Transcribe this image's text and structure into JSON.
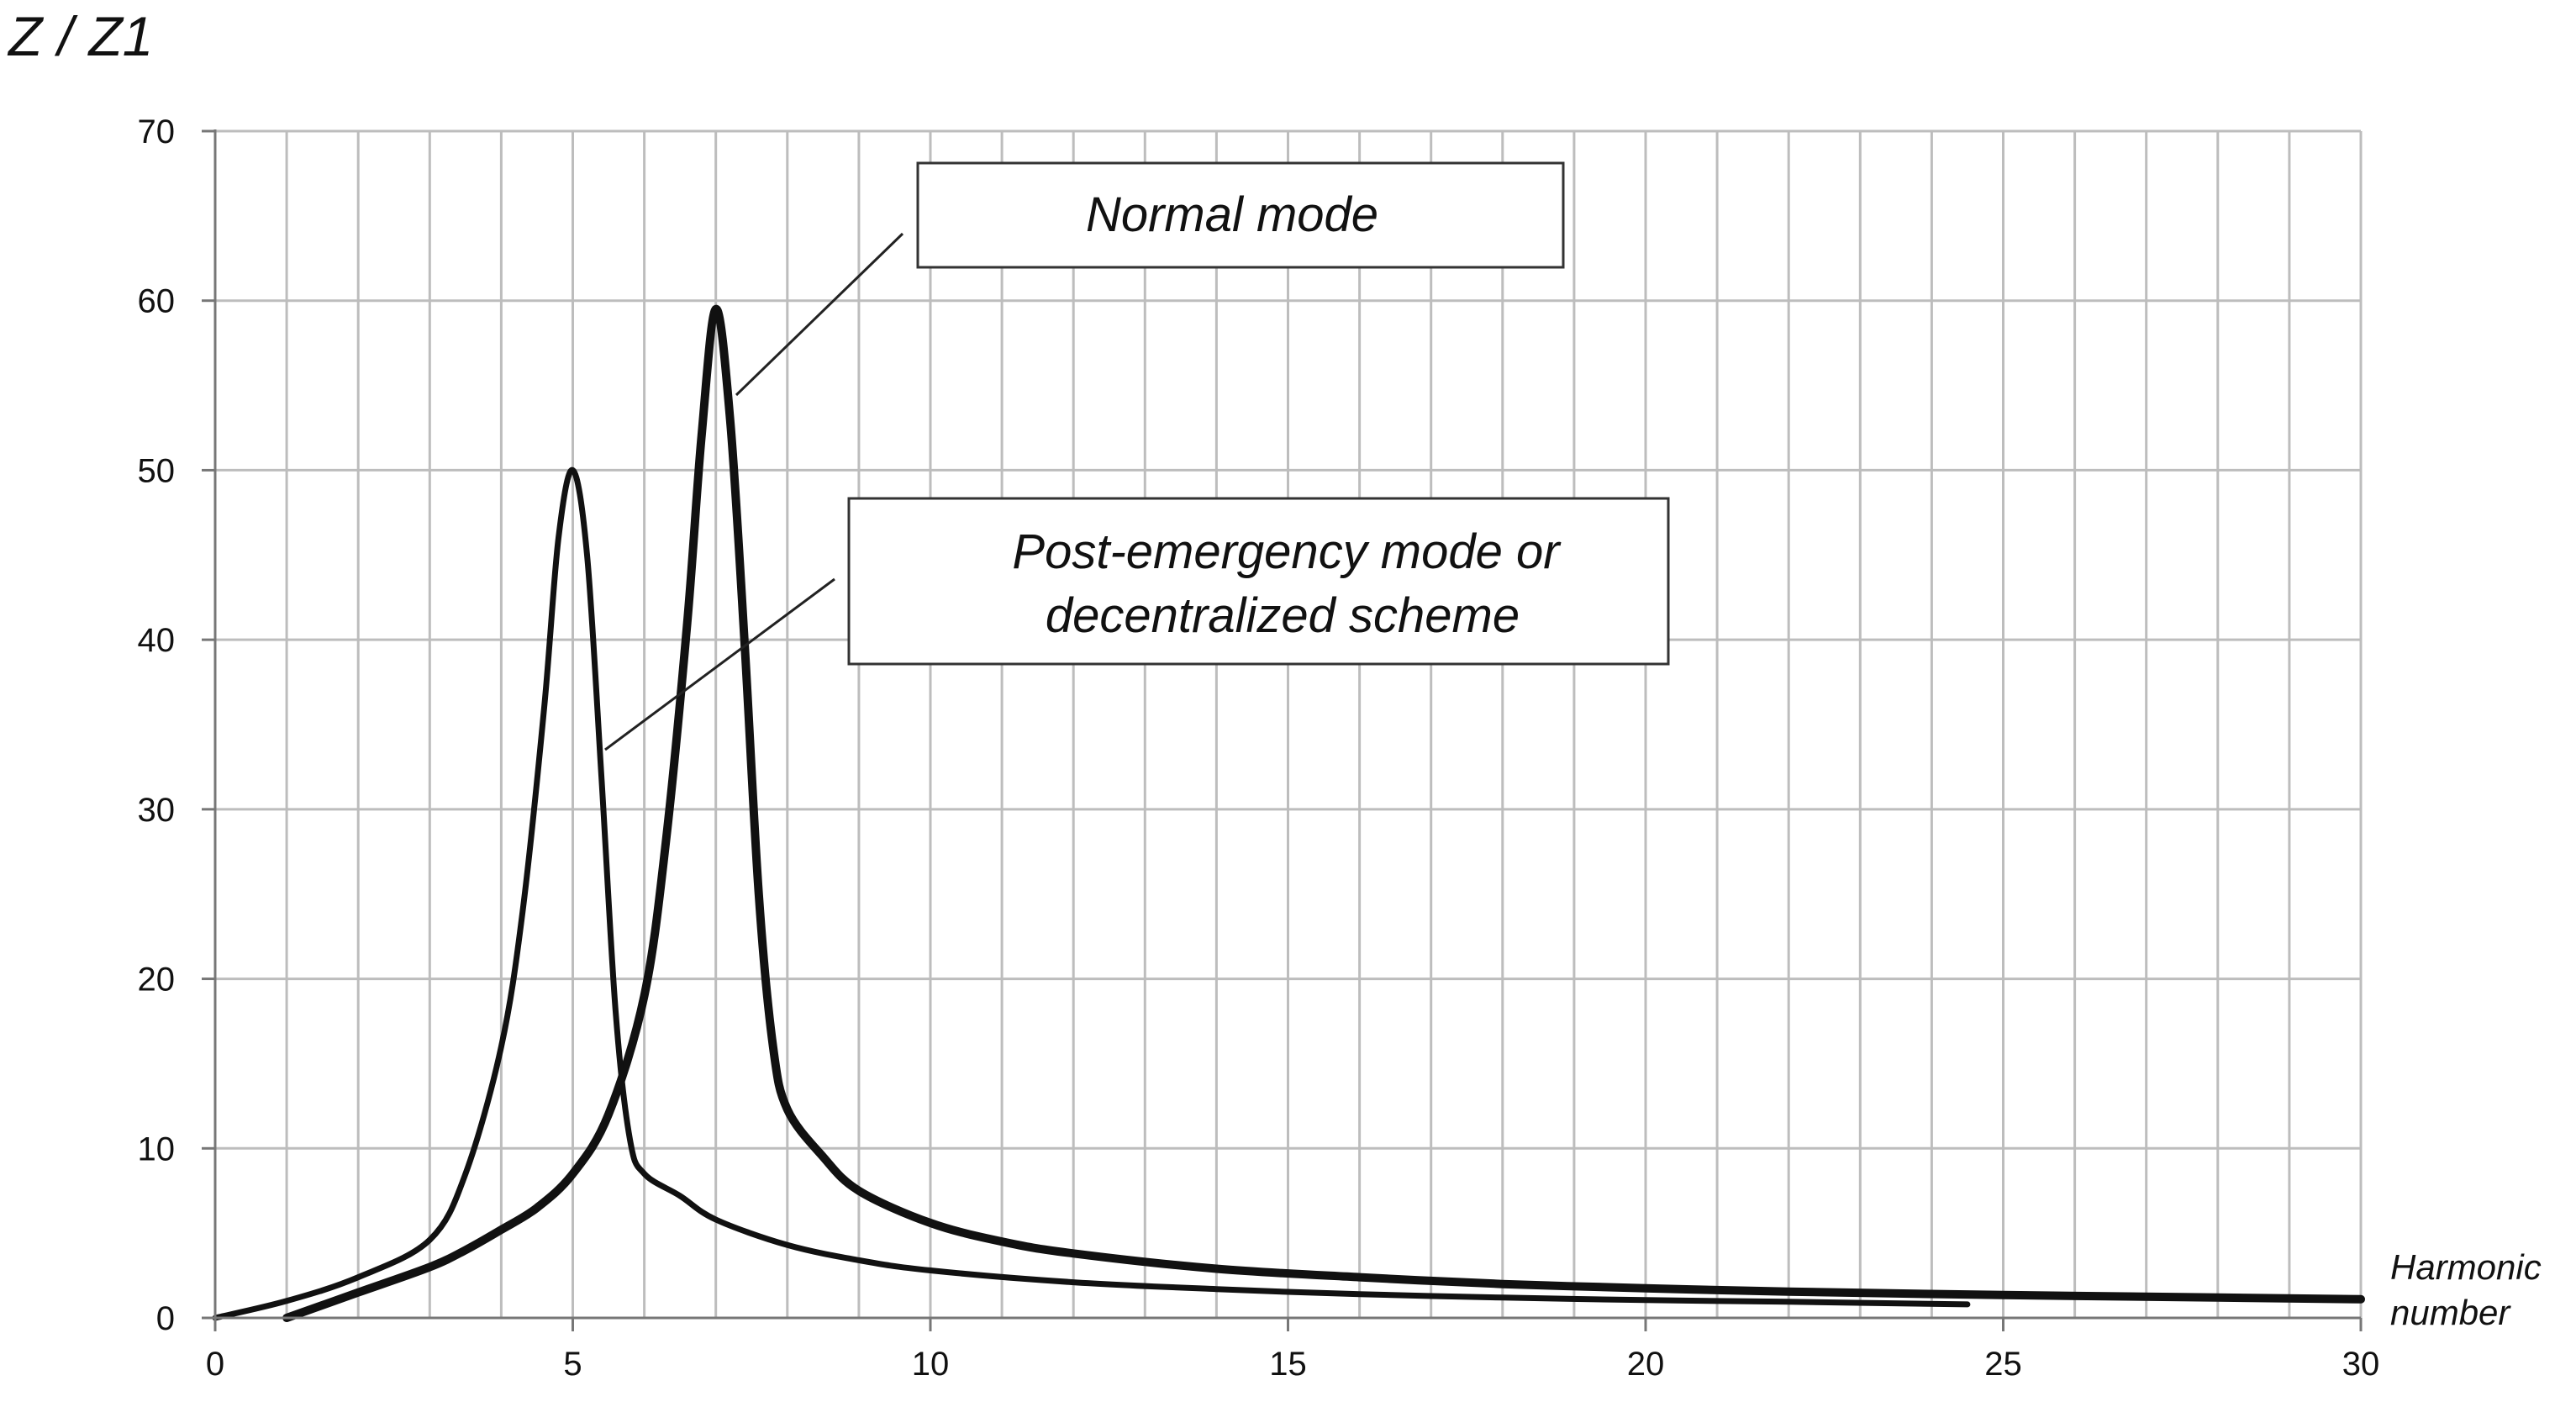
{
  "chart_data": {
    "type": "line",
    "ylabel": "Z / Z1",
    "xlabel": [
      "Harmonic",
      "number"
    ],
    "xlim": [
      0,
      30
    ],
    "ylim": [
      0,
      70
    ],
    "xticks": [
      0,
      5,
      10,
      15,
      20,
      25,
      30
    ],
    "yticks": [
      0,
      10,
      20,
      30,
      40,
      50,
      60,
      70
    ],
    "x_minor_step": 1,
    "grid": true,
    "series": [
      {
        "label": [
          "Normal mode"
        ],
        "x": [
          1,
          2,
          3,
          3.5,
          4,
          4.5,
          5,
          5.5,
          6,
          6.3,
          6.6,
          6.8,
          7,
          7.2,
          7.4,
          7.6,
          7.8,
          8,
          8.5,
          9,
          10,
          11,
          12,
          14,
          16,
          18,
          20,
          22,
          25,
          28,
          30
        ],
        "y": [
          0,
          1.5,
          3.0,
          4.0,
          5.2,
          6.5,
          8.5,
          12,
          19,
          28,
          41,
          52,
          59.5,
          53,
          40,
          25,
          16,
          12.3,
          9.5,
          7.5,
          5.6,
          4.5,
          3.8,
          2.9,
          2.4,
          2.0,
          1.75,
          1.55,
          1.35,
          1.2,
          1.1
        ]
      },
      {
        "label": [
          "Post-emergency mode or",
          "decentralized scheme"
        ],
        "x": [
          0,
          1,
          2,
          3,
          3.5,
          4,
          4.3,
          4.6,
          4.8,
          5,
          5.2,
          5.4,
          5.6,
          5.8,
          6,
          6.5,
          7,
          8,
          9,
          10,
          12,
          14,
          16,
          18,
          20,
          22,
          24.5
        ],
        "y": [
          0,
          1.0,
          2.4,
          4.6,
          8.5,
          16,
          24,
          36,
          46,
          50,
          45,
          32,
          18,
          10.5,
          8.5,
          7.2,
          5.8,
          4.3,
          3.4,
          2.8,
          2.1,
          1.7,
          1.4,
          1.2,
          1.05,
          0.95,
          0.8
        ]
      }
    ]
  }
}
